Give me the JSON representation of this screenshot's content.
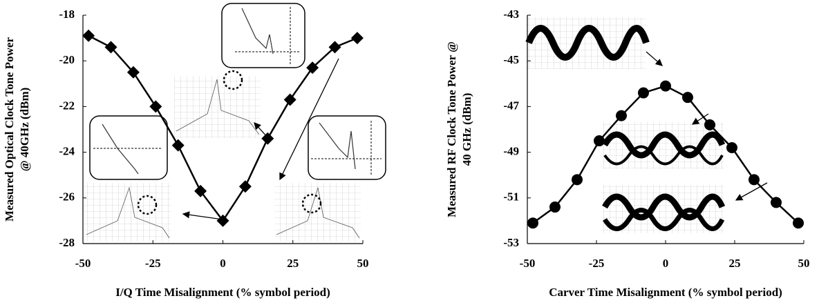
{
  "chart_data": [
    {
      "type": "line",
      "marker": "diamond",
      "color": "#000000",
      "xlabel": "I/Q Time Misalignment (% symbol period)",
      "ylabel": [
        "Measured Optical Clock Tone Power",
        "@ 40GHz (dBm)"
      ],
      "x": [
        -48,
        -40,
        -32,
        -24,
        -16,
        -8,
        0,
        8,
        16,
        24,
        32,
        40,
        48
      ],
      "values": [
        -18.9,
        -19.4,
        -20.5,
        -22.0,
        -23.7,
        -25.7,
        -27.0,
        -25.5,
        -23.4,
        -21.7,
        -20.3,
        -19.4,
        -19.0
      ],
      "xlim": [
        -50,
        50
      ],
      "xticks": [
        -50,
        -25,
        0,
        25,
        50
      ],
      "ylim": [
        -28,
        -18
      ],
      "yticks": [
        -28,
        -26,
        -24,
        -22,
        -20,
        -18
      ]
    },
    {
      "type": "line",
      "marker": "circle",
      "color": "#000000",
      "xlabel": "Carver Time Misalignment (% symbol period)",
      "ylabel": [
        "Measured RF Clock Tone Power @",
        "40 GHz (dBm)"
      ],
      "x": [
        -48,
        -40,
        -32,
        -24,
        -16,
        -8,
        0,
        8,
        16,
        24,
        32,
        40,
        48
      ],
      "values": [
        -52.1,
        -51.4,
        -50.2,
        -48.5,
        -47.4,
        -46.4,
        -46.1,
        -46.6,
        -47.8,
        -48.8,
        -50.2,
        -51.2,
        -52.1
      ],
      "xlim": [
        -50,
        50
      ],
      "xticks": [
        -50,
        -25,
        0,
        25,
        50
      ],
      "ylim": [
        -53,
        -43
      ],
      "yticks": [
        -53,
        -51,
        -49,
        -47,
        -45,
        -43
      ]
    }
  ]
}
